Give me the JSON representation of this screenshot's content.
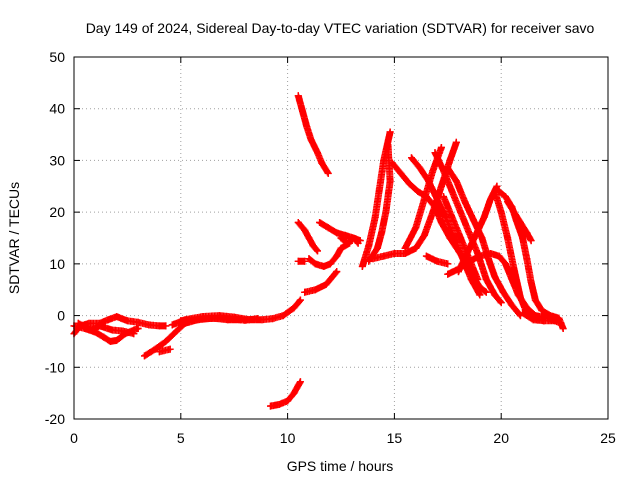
{
  "chart_data": {
    "type": "scatter",
    "title": "Day 149 of 2024, Sidereal Day-to-day VTEC variation (SDTVAR) for receiver savo",
    "xlabel": "GPS time / hours",
    "ylabel": "SDTVAR / TECUs",
    "xlim": [
      0,
      25
    ],
    "ylim": [
      -20,
      50
    ],
    "x_ticks": [
      0,
      5,
      10,
      15,
      20,
      25
    ],
    "y_ticks": [
      -20,
      -10,
      0,
      10,
      20,
      30,
      40,
      50
    ],
    "x_tick_labels": [
      "0",
      "5",
      "10",
      "15",
      "20",
      "25"
    ],
    "y_tick_labels": [
      "-20",
      "-10",
      "0",
      "10",
      "20",
      "30",
      "40",
      "50"
    ],
    "grid": true,
    "marker": "+",
    "color": "#ff0000",
    "series": [
      {
        "name": "arc-01",
        "points": [
          [
            0.0,
            -3.5
          ],
          [
            0.3,
            -2.0
          ],
          [
            0.7,
            -1.5
          ],
          [
            1.2,
            -1.5
          ],
          [
            1.6,
            -0.8
          ],
          [
            2.0,
            -0.2
          ],
          [
            2.5,
            -1.0
          ],
          [
            3.0,
            -1.3
          ],
          [
            3.5,
            -1.8
          ],
          [
            4.0,
            -2.0
          ],
          [
            4.3,
            -2.0
          ]
        ]
      },
      {
        "name": "arc-02",
        "points": [
          [
            0.0,
            -2.0
          ],
          [
            0.5,
            -2.5
          ],
          [
            1.0,
            -3.2
          ],
          [
            1.4,
            -4.2
          ],
          [
            1.7,
            -5.0
          ],
          [
            2.0,
            -4.8
          ],
          [
            2.4,
            -3.5
          ],
          [
            2.8,
            -2.8
          ],
          [
            3.0,
            -2.5
          ]
        ]
      },
      {
        "name": "arc-03",
        "points": [
          [
            0.2,
            -1.5
          ],
          [
            0.8,
            -2.8
          ],
          [
            1.2,
            -2.0
          ],
          [
            1.8,
            -2.8
          ],
          [
            2.3,
            -3.0
          ],
          [
            2.8,
            -3.5
          ]
        ]
      },
      {
        "name": "arc-04",
        "points": [
          [
            3.3,
            -7.8
          ],
          [
            3.8,
            -6.5
          ],
          [
            4.3,
            -5.0
          ],
          [
            4.8,
            -3.0
          ],
          [
            5.2,
            -1.5
          ],
          [
            5.8,
            -0.8
          ],
          [
            6.5,
            -0.5
          ],
          [
            7.2,
            -0.8
          ],
          [
            7.8,
            -0.8
          ]
        ]
      },
      {
        "name": "arc-05",
        "points": [
          [
            4.0,
            -7.0
          ],
          [
            4.5,
            -6.5
          ]
        ]
      },
      {
        "name": "arc-06",
        "points": [
          [
            4.6,
            -1.8
          ],
          [
            5.2,
            -0.8
          ],
          [
            6.0,
            -0.2
          ],
          [
            6.8,
            0.0
          ],
          [
            7.5,
            -0.3
          ],
          [
            8.2,
            -0.8
          ],
          [
            8.8,
            -0.8
          ],
          [
            9.3,
            -0.6
          ],
          [
            9.8,
            0.0
          ],
          [
            10.3,
            1.5
          ],
          [
            10.6,
            3.0
          ]
        ]
      },
      {
        "name": "arc-07",
        "points": [
          [
            5.0,
            -1.0
          ],
          [
            6.0,
            -0.6
          ],
          [
            7.0,
            -0.5
          ],
          [
            8.0,
            -0.9
          ],
          [
            8.6,
            -0.6
          ]
        ]
      },
      {
        "name": "arc-08",
        "points": [
          [
            9.2,
            -17.5
          ],
          [
            9.6,
            -17.2
          ],
          [
            10.0,
            -16.5
          ],
          [
            10.3,
            -15.0
          ],
          [
            10.5,
            -13.5
          ],
          [
            10.6,
            -12.8
          ]
        ]
      },
      {
        "name": "arc-09",
        "points": [
          [
            10.5,
            42.5
          ],
          [
            10.7,
            39.5
          ],
          [
            10.9,
            36.5
          ],
          [
            11.1,
            34.0
          ],
          [
            11.4,
            31.5
          ],
          [
            11.6,
            29.5
          ],
          [
            11.9,
            27.5
          ]
        ]
      },
      {
        "name": "arc-10",
        "points": [
          [
            10.5,
            18.0
          ],
          [
            10.8,
            16.5
          ],
          [
            11.0,
            15.0
          ],
          [
            11.2,
            13.5
          ],
          [
            11.4,
            12.5
          ]
        ]
      },
      {
        "name": "arc-11",
        "points": [
          [
            10.5,
            10.5
          ],
          [
            10.8,
            10.5
          ]
        ]
      },
      {
        "name": "arc-12",
        "points": [
          [
            11.0,
            11.0
          ],
          [
            11.3,
            10.0
          ],
          [
            11.7,
            9.5
          ],
          [
            12.0,
            10.0
          ],
          [
            12.3,
            11.5
          ],
          [
            12.5,
            13.0
          ],
          [
            12.9,
            14.0
          ]
        ]
      },
      {
        "name": "arc-13",
        "points": [
          [
            10.8,
            4.5
          ],
          [
            11.3,
            5.0
          ],
          [
            11.8,
            6.0
          ],
          [
            12.1,
            7.5
          ],
          [
            12.3,
            8.5
          ]
        ]
      },
      {
        "name": "arc-14",
        "points": [
          [
            11.5,
            18.0
          ],
          [
            11.9,
            17.0
          ],
          [
            12.3,
            16.0
          ],
          [
            12.7,
            15.5
          ],
          [
            13.1,
            15.0
          ],
          [
            13.3,
            14.0
          ]
        ]
      },
      {
        "name": "arc-15",
        "points": [
          [
            12.5,
            15.0
          ],
          [
            12.8,
            14.0
          ],
          [
            13.1,
            15.0
          ],
          [
            13.4,
            14.5
          ]
        ]
      },
      {
        "name": "arc-16",
        "points": [
          [
            13.5,
            9.5
          ],
          [
            13.8,
            13.5
          ],
          [
            14.1,
            19.0
          ],
          [
            14.3,
            24.5
          ],
          [
            14.5,
            30.0
          ],
          [
            14.8,
            35.5
          ]
        ]
      },
      {
        "name": "arc-17",
        "points": [
          [
            13.8,
            10.5
          ],
          [
            14.2,
            13.0
          ],
          [
            14.4,
            16.0
          ],
          [
            14.6,
            20.0
          ],
          [
            14.8,
            26.0
          ],
          [
            14.7,
            33.0
          ]
        ]
      },
      {
        "name": "arc-18",
        "points": [
          [
            14.0,
            11.0
          ],
          [
            14.5,
            11.5
          ],
          [
            15.0,
            12.0
          ],
          [
            15.5,
            12.0
          ],
          [
            16.0,
            13.0
          ],
          [
            16.4,
            15.5
          ],
          [
            16.8,
            20.0
          ],
          [
            17.2,
            25.0
          ],
          [
            17.6,
            30.0
          ],
          [
            17.9,
            33.5
          ]
        ]
      },
      {
        "name": "arc-19",
        "points": [
          [
            14.9,
            29.5
          ],
          [
            15.3,
            27.5
          ],
          [
            15.7,
            25.5
          ],
          [
            16.1,
            24.0
          ],
          [
            16.5,
            23.0
          ],
          [
            16.9,
            21.0
          ],
          [
            17.2,
            18.0
          ],
          [
            17.6,
            15.0
          ],
          [
            18.0,
            12.5
          ],
          [
            18.4,
            10.0
          ],
          [
            18.7,
            7.5
          ],
          [
            19.0,
            5.5
          ],
          [
            19.3,
            4.5
          ]
        ]
      },
      {
        "name": "arc-20",
        "points": [
          [
            15.5,
            13.0
          ],
          [
            16.0,
            17.0
          ],
          [
            16.4,
            22.5
          ],
          [
            16.8,
            28.0
          ],
          [
            17.2,
            32.5
          ]
        ]
      },
      {
        "name": "arc-21",
        "points": [
          [
            15.8,
            30.5
          ],
          [
            16.2,
            28.5
          ],
          [
            16.6,
            26.0
          ],
          [
            17.0,
            22.5
          ],
          [
            17.4,
            19.0
          ],
          [
            17.8,
            15.0
          ],
          [
            18.2,
            11.0
          ],
          [
            18.6,
            7.0
          ],
          [
            19.0,
            4.0
          ]
        ]
      },
      {
        "name": "arc-22",
        "points": [
          [
            16.5,
            11.5
          ],
          [
            17.0,
            10.5
          ],
          [
            17.5,
            10.0
          ]
        ]
      },
      {
        "name": "arc-23",
        "points": [
          [
            16.9,
            31.5
          ],
          [
            17.3,
            28.0
          ],
          [
            17.7,
            24.0
          ],
          [
            18.1,
            20.0
          ],
          [
            18.5,
            16.0
          ],
          [
            18.9,
            12.0
          ],
          [
            19.3,
            7.0
          ],
          [
            19.7,
            4.0
          ],
          [
            20.0,
            2.5
          ]
        ]
      },
      {
        "name": "arc-24",
        "points": [
          [
            17.5,
            28.5
          ],
          [
            17.9,
            26.0
          ],
          [
            18.3,
            22.0
          ],
          [
            18.7,
            18.5
          ],
          [
            19.1,
            15.0
          ],
          [
            19.4,
            11.0
          ],
          [
            19.7,
            7.5
          ],
          [
            20.1,
            4.5
          ],
          [
            20.5,
            2.0
          ],
          [
            20.9,
            0.0
          ]
        ]
      },
      {
        "name": "arc-25",
        "points": [
          [
            17.3,
            23.0
          ],
          [
            17.7,
            19.0
          ],
          [
            18.1,
            15.0
          ],
          [
            18.5,
            11.0
          ],
          [
            18.9,
            7.0
          ]
        ]
      },
      {
        "name": "arc-26",
        "points": [
          [
            17.5,
            8.0
          ],
          [
            18.0,
            9.0
          ],
          [
            18.5,
            10.5
          ],
          [
            19.0,
            11.5
          ],
          [
            19.5,
            12.0
          ],
          [
            19.9,
            11.5
          ],
          [
            20.2,
            10.0
          ],
          [
            20.5,
            7.0
          ],
          [
            20.8,
            4.0
          ],
          [
            21.2,
            1.5
          ],
          [
            21.6,
            0.0
          ],
          [
            22.2,
            -0.5
          ],
          [
            22.8,
            -1.5
          ]
        ]
      },
      {
        "name": "arc-27",
        "points": [
          [
            18.0,
            8.5
          ],
          [
            18.4,
            12.0
          ],
          [
            18.8,
            15.5
          ],
          [
            19.2,
            19.0
          ],
          [
            19.5,
            22.5
          ],
          [
            19.8,
            25.0
          ]
        ]
      },
      {
        "name": "arc-28",
        "points": [
          [
            19.7,
            24.0
          ],
          [
            20.0,
            20.0
          ],
          [
            20.3,
            15.0
          ],
          [
            20.6,
            9.0
          ],
          [
            20.9,
            3.5
          ],
          [
            21.2,
            0.5
          ],
          [
            21.5,
            -0.5
          ],
          [
            22.0,
            -1.0
          ]
        ]
      },
      {
        "name": "arc-29",
        "points": [
          [
            19.9,
            24.0
          ],
          [
            20.2,
            23.0
          ],
          [
            20.5,
            21.0
          ],
          [
            20.7,
            18.5
          ],
          [
            21.0,
            15.0
          ],
          [
            21.2,
            11.0
          ],
          [
            21.4,
            6.5
          ],
          [
            21.6,
            3.0
          ],
          [
            21.9,
            1.0
          ],
          [
            22.3,
            0.0
          ],
          [
            22.7,
            -0.5
          ],
          [
            22.9,
            -2.5
          ]
        ]
      },
      {
        "name": "arc-30",
        "points": [
          [
            20.3,
            22.0
          ],
          [
            20.6,
            20.0
          ],
          [
            20.9,
            18.0
          ],
          [
            21.2,
            16.0
          ],
          [
            21.4,
            14.5
          ]
        ]
      },
      {
        "name": "arc-31",
        "points": [
          [
            21.0,
            0.5
          ],
          [
            21.5,
            -0.8
          ],
          [
            22.0,
            -1.0
          ],
          [
            22.5,
            -1.0
          ]
        ]
      }
    ]
  }
}
